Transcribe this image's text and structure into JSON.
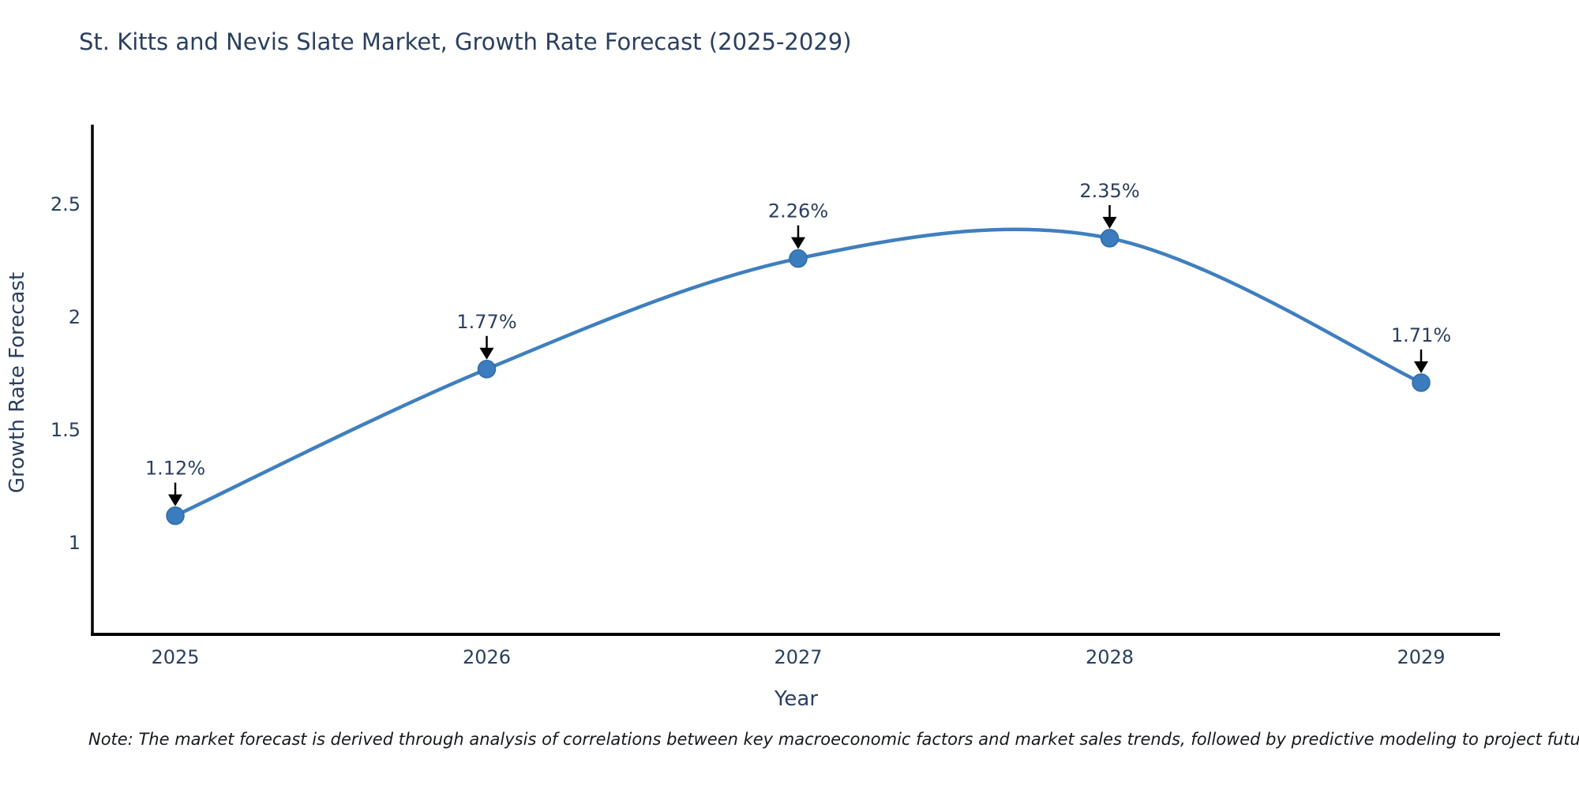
{
  "title": "St. Kitts and Nevis Slate Market, Growth Rate Forecast (2025-2029)",
  "note": "Note: The market forecast is derived through analysis of correlations between key macroeconomic factors and market sales trends, followed by predictive modeling to project future sales",
  "chart_data": {
    "type": "line",
    "title": "St. Kitts and Nevis Slate Market, Growth Rate Forecast (2025-2029)",
    "x": [
      "2025",
      "2026",
      "2027",
      "2028",
      "2029"
    ],
    "series": [
      {
        "name": "Growth Rate Forecast",
        "values": [
          1.12,
          1.77,
          2.26,
          2.35,
          1.71
        ]
      }
    ],
    "point_labels": [
      "1.12%",
      "1.77%",
      "2.26%",
      "2.35%",
      "1.71%"
    ],
    "xlabel": "Year",
    "ylabel": "Growth Rate Forecast",
    "ytick_labels": [
      "1",
      "1.5",
      "2",
      "2.5"
    ],
    "ytick_values": [
      1,
      1.5,
      2,
      2.5
    ],
    "ylim": [
      0.6,
      2.85
    ],
    "line_shape": "spline",
    "grid": false,
    "legend_position": "none",
    "colors": {
      "line": "#3f7fbf",
      "marker": "#3a7cbd",
      "marker_edge": "#2f6ba6",
      "axis": "#000000",
      "text": "#2a3f5f",
      "annotation_arrow": "#000000",
      "background": "#ffffff"
    }
  }
}
